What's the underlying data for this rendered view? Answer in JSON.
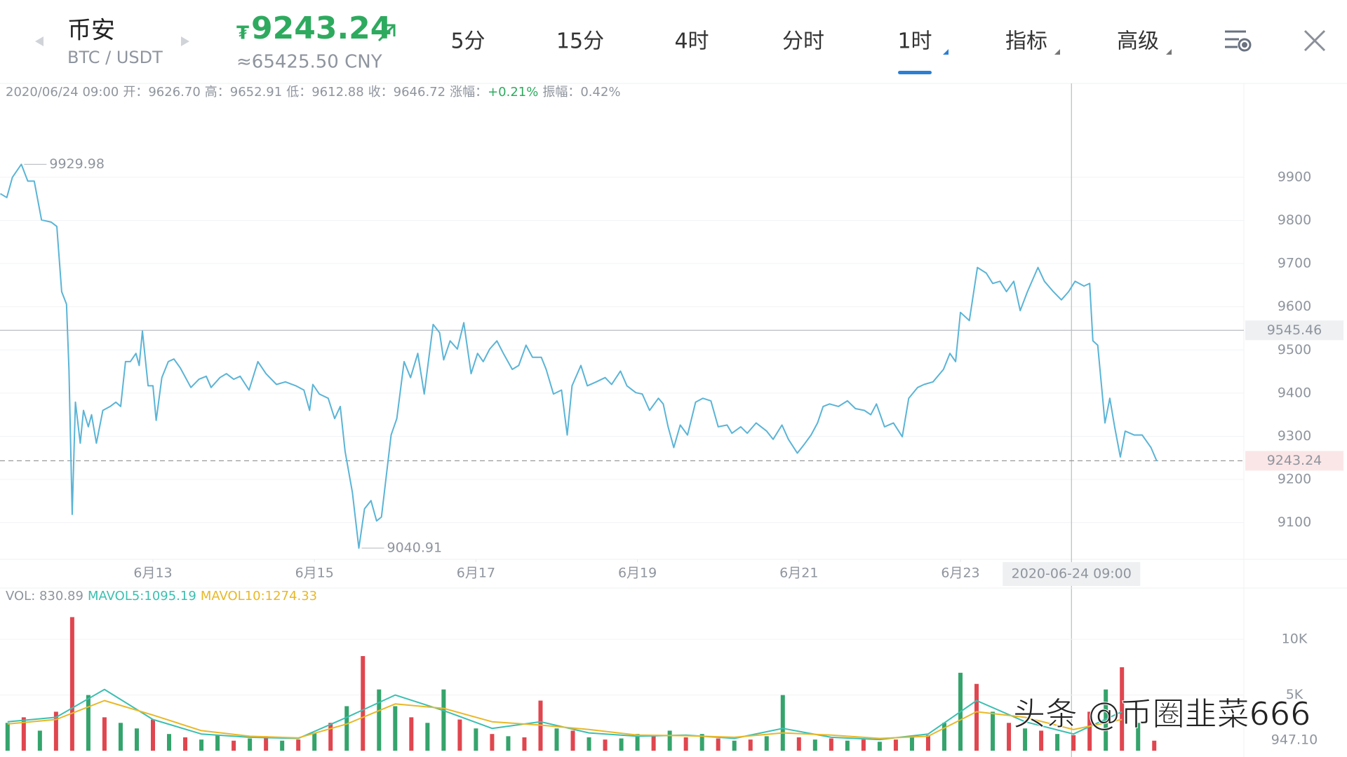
{
  "header": {
    "name": "币安",
    "pair": "BTC / USDT",
    "price_symbol": "₮",
    "price": "9243.24",
    "cny": "≈65425.50 CNY"
  },
  "tabs": [
    "5分",
    "15分",
    "4时",
    "分时",
    "1时",
    "指标",
    "高级"
  ],
  "active_tab": 4,
  "info": {
    "time": "2020/06/24 09:00",
    "items": [
      {
        "label": "开：",
        "value": "9626.70"
      },
      {
        "label": "高：",
        "value": "9652.91"
      },
      {
        "label": "低：",
        "value": "9612.88"
      },
      {
        "label": "收：",
        "value": "9646.72"
      },
      {
        "label": "涨幅：",
        "value": "+0.21%"
      },
      {
        "label": "振幅：",
        "value": "0.42%"
      }
    ]
  },
  "watermark": "头条 @币圈韭菜666",
  "chart_data": [
    {
      "type": "line",
      "color": "#5ab4d6",
      "x": [
        11.11,
        11.19,
        11.26,
        11.37,
        11.45,
        11.53,
        11.62,
        11.74,
        11.81,
        11.87,
        11.93,
        11.96,
        12.0,
        12.04,
        12.1,
        12.14,
        12.2,
        12.24,
        12.3,
        12.38,
        12.47,
        12.54,
        12.6,
        12.66,
        12.72,
        12.79,
        12.83,
        12.87,
        12.94,
        13.0,
        13.04,
        13.11,
        13.19,
        13.26,
        13.34,
        13.47,
        13.57,
        13.66,
        13.72,
        13.83,
        13.91,
        14.0,
        14.08,
        14.19,
        14.3,
        14.4,
        14.53,
        14.64,
        14.77,
        14.87,
        14.94,
        14.98,
        15.06,
        15.17,
        15.25,
        15.32,
        15.38,
        15.47,
        15.55,
        15.62,
        15.7,
        15.77,
        15.83,
        15.89,
        15.95,
        16.02,
        16.11,
        16.19,
        16.28,
        16.36,
        16.47,
        16.55,
        16.6,
        16.68,
        16.77,
        16.85,
        16.94,
        17.02,
        17.09,
        17.17,
        17.26,
        17.34,
        17.45,
        17.53,
        17.62,
        17.7,
        17.81,
        17.87,
        17.96,
        18.06,
        18.13,
        18.19,
        18.3,
        18.38,
        18.49,
        18.6,
        18.68,
        18.79,
        18.87,
        18.98,
        19.06,
        19.15,
        19.26,
        19.32,
        19.38,
        19.45,
        19.53,
        19.62,
        19.72,
        19.81,
        19.91,
        20.0,
        20.11,
        20.17,
        20.28,
        20.36,
        20.47,
        20.6,
        20.68,
        20.79,
        20.87,
        20.98,
        21.06,
        21.15,
        21.23,
        21.3,
        21.38,
        21.49,
        21.6,
        21.7,
        21.81,
        21.89,
        21.96,
        22.06,
        22.17,
        22.28,
        22.36,
        22.47,
        22.55,
        22.66,
        22.79,
        22.87,
        22.94,
        23.0,
        23.11,
        23.21,
        23.32,
        23.4,
        23.49,
        23.57,
        23.66,
        23.74,
        23.83,
        23.96,
        24.04,
        24.15,
        24.25,
        24.34,
        24.42,
        24.53,
        24.6,
        24.64,
        24.7,
        24.79,
        24.85,
        24.91,
        24.98,
        25.04,
        25.15,
        25.25,
        25.36,
        25.43
      ],
      "values": [
        9862,
        9853,
        9900,
        9929.98,
        9891,
        9891,
        9801,
        9796,
        9786,
        9635,
        9606,
        9455,
        9119,
        9379,
        9284,
        9360,
        9322,
        9350,
        9284,
        9360,
        9369,
        9379,
        9369,
        9473,
        9473,
        9492,
        9464,
        9544,
        9417,
        9417,
        9337,
        9436,
        9473,
        9479,
        9458,
        9413,
        9432,
        9439,
        9413,
        9436,
        9445,
        9432,
        9439,
        9407,
        9473,
        9445,
        9420,
        9426,
        9417,
        9407,
        9360,
        9420,
        9398,
        9388,
        9341,
        9369,
        9265,
        9170,
        9040.91,
        9132,
        9151,
        9104,
        9113,
        9208,
        9303,
        9341,
        9473,
        9436,
        9492,
        9398,
        9559,
        9540,
        9477,
        9521,
        9502,
        9563,
        9445,
        9492,
        9473,
        9502,
        9521,
        9492,
        9455,
        9464,
        9511,
        9483,
        9483,
        9455,
        9398,
        9407,
        9303,
        9417,
        9464,
        9417,
        9426,
        9436,
        9420,
        9451,
        9417,
        9401,
        9398,
        9360,
        9388,
        9375,
        9322,
        9274,
        9326,
        9303,
        9379,
        9388,
        9382,
        9322,
        9326,
        9307,
        9322,
        9307,
        9331,
        9312,
        9293,
        9326,
        9293,
        9261,
        9280,
        9303,
        9331,
        9369,
        9375,
        9369,
        9382,
        9364,
        9360,
        9350,
        9375,
        9322,
        9331,
        9299,
        9388,
        9413,
        9420,
        9426,
        9455,
        9492,
        9473,
        9587,
        9568,
        9691,
        9678,
        9654,
        9659,
        9635,
        9659,
        9591,
        9635,
        9691,
        9659,
        9635,
        9616,
        9635,
        9659,
        9648,
        9654,
        9521,
        9511,
        9331,
        9388,
        9322,
        9252,
        9312,
        9303,
        9303,
        9274,
        9243.24
      ],
      "annotations": [
        "9929.98",
        "9040.91"
      ],
      "xlim": [
        11.106,
        26.51
      ],
      "ylim": [
        9015,
        10067
      ],
      "xticks": [
        {
          "value": 13,
          "label": "6月13"
        },
        {
          "value": 15,
          "label": "6月15"
        },
        {
          "value": 17,
          "label": "6月17"
        },
        {
          "value": 19,
          "label": "6月19"
        },
        {
          "value": 21,
          "label": "6月21"
        },
        {
          "value": 23,
          "label": "6月23"
        }
      ],
      "yticks": [
        9100,
        9200,
        9300,
        9400,
        9500,
        9600,
        9700,
        9800,
        9900
      ],
      "grid": true,
      "crosshair": {
        "x": 24.375,
        "x_label": "2020-06-24 09:00",
        "y": 9545.46
      },
      "last_price": 9243.24,
      "last_price_color": "#e0464f"
    },
    {
      "type": "bar",
      "legend": [
        "VOL: 830.89",
        "MAVOL5:1095.19",
        "MAVOL10:1274.33"
      ],
      "legend_colors": [
        "#8f959e",
        "#3bbfb0",
        "#e8b828"
      ],
      "x": [
        11.2,
        11.4,
        11.6,
        11.8,
        12.0,
        12.2,
        12.4,
        12.6,
        12.8,
        13.0,
        13.2,
        13.4,
        13.6,
        13.8,
        14.0,
        14.2,
        14.4,
        14.6,
        14.8,
        15.0,
        15.2,
        15.4,
        15.6,
        15.8,
        16.0,
        16.2,
        16.4,
        16.6,
        16.8,
        17.0,
        17.2,
        17.4,
        17.6,
        17.8,
        18.0,
        18.2,
        18.4,
        18.6,
        18.8,
        19.0,
        19.2,
        19.4,
        19.6,
        19.8,
        20.0,
        20.2,
        20.4,
        20.6,
        20.8,
        21.0,
        21.2,
        21.4,
        21.6,
        21.8,
        22.0,
        22.2,
        22.4,
        22.6,
        22.8,
        23.0,
        23.2,
        23.4,
        23.6,
        23.8,
        24.0,
        24.2,
        24.4,
        24.6,
        24.8,
        25.0,
        25.2,
        25.4
      ],
      "values": [
        2500,
        3000,
        1800,
        3500,
        12000,
        5000,
        3000,
        2500,
        2000,
        2800,
        1500,
        1200,
        1000,
        1400,
        900,
        1100,
        1300,
        900,
        1000,
        1600,
        2500,
        4000,
        8500,
        5500,
        4000,
        3000,
        2500,
        5500,
        2800,
        2000,
        1500,
        1300,
        1200,
        4500,
        2000,
        1800,
        1200,
        1000,
        1100,
        1500,
        1300,
        1800,
        1200,
        1500,
        1100,
        900,
        1000,
        1300,
        5000,
        1200,
        1000,
        1100,
        900,
        1000,
        800,
        1000,
        1200,
        1400,
        2500,
        7000,
        6000,
        3500,
        2500,
        2000,
        1800,
        1500,
        1400,
        3500,
        5500,
        7500,
        2500,
        900
      ],
      "bar_colors": [
        "#35a46c",
        "#e0464f",
        "#35a46c",
        "#e0464f",
        "#e0464f",
        "#35a46c",
        "#e0464f",
        "#35a46c",
        "#35a46c",
        "#e0464f",
        "#35a46c",
        "#e0464f",
        "#35a46c",
        "#35a46c",
        "#e0464f",
        "#35a46c",
        "#e0464f",
        "#35a46c",
        "#e0464f",
        "#35a46c",
        "#e0464f",
        "#35a46c",
        "#e0464f",
        "#35a46c",
        "#35a46c",
        "#e0464f",
        "#35a46c",
        "#35a46c",
        "#e0464f",
        "#35a46c",
        "#e0464f",
        "#35a46c",
        "#e0464f",
        "#e0464f",
        "#35a46c",
        "#e0464f",
        "#35a46c",
        "#e0464f",
        "#35a46c",
        "#35a46c",
        "#e0464f",
        "#35a46c",
        "#e0464f",
        "#35a46c",
        "#e0464f",
        "#35a46c",
        "#e0464f",
        "#35a46c",
        "#35a46c",
        "#e0464f",
        "#35a46c",
        "#e0464f",
        "#35a46c",
        "#e0464f",
        "#35a46c",
        "#e0464f",
        "#35a46c",
        "#e0464f",
        "#35a46c",
        "#35a46c",
        "#e0464f",
        "#35a46c",
        "#e0464f",
        "#35a46c",
        "#e0464f",
        "#35a46c",
        "#e0464f",
        "#e0464f",
        "#35a46c",
        "#e0464f",
        "#35a46c",
        "#e0464f"
      ],
      "series": [
        {
          "color": "#3bbfb0",
          "x": [
            11.2,
            11.8,
            12.4,
            13.0,
            13.6,
            14.2,
            14.8,
            15.4,
            16.0,
            16.6,
            17.2,
            17.8,
            18.4,
            19.0,
            19.6,
            20.2,
            20.8,
            21.4,
            22.0,
            22.6,
            23.2,
            23.8,
            24.4,
            25.0
          ],
          "values": [
            2600,
            3000,
            5500,
            2800,
            1500,
            1200,
            1100,
            3000,
            5000,
            3600,
            2000,
            2600,
            1600,
            1300,
            1400,
            1100,
            2000,
            1200,
            1000,
            1500,
            4500,
            2600,
            1500,
            3500
          ]
        },
        {
          "color": "#e8b828",
          "x": [
            11.2,
            11.8,
            12.4,
            13.0,
            13.6,
            14.2,
            14.8,
            15.4,
            16.0,
            16.6,
            17.2,
            17.8,
            18.4,
            19.0,
            19.6,
            20.2,
            20.8,
            21.4,
            22.0,
            22.6,
            23.2,
            23.8,
            24.4,
            25.0
          ],
          "values": [
            2400,
            2800,
            4500,
            3200,
            1800,
            1300,
            1150,
            2400,
            4200,
            3800,
            2600,
            2300,
            1900,
            1400,
            1350,
            1200,
            1600,
            1400,
            1100,
            1300,
            3500,
            3000,
            1900,
            2800
          ]
        }
      ],
      "xlim": [
        11.106,
        26.51
      ],
      "ylim": [
        0,
        14230
      ],
      "yticks": [
        {
          "value": 5000,
          "label": "5K"
        },
        {
          "value": 10000,
          "label": "10K"
        }
      ],
      "current_label": "947.10",
      "current_label_color": "#e8b828"
    }
  ]
}
